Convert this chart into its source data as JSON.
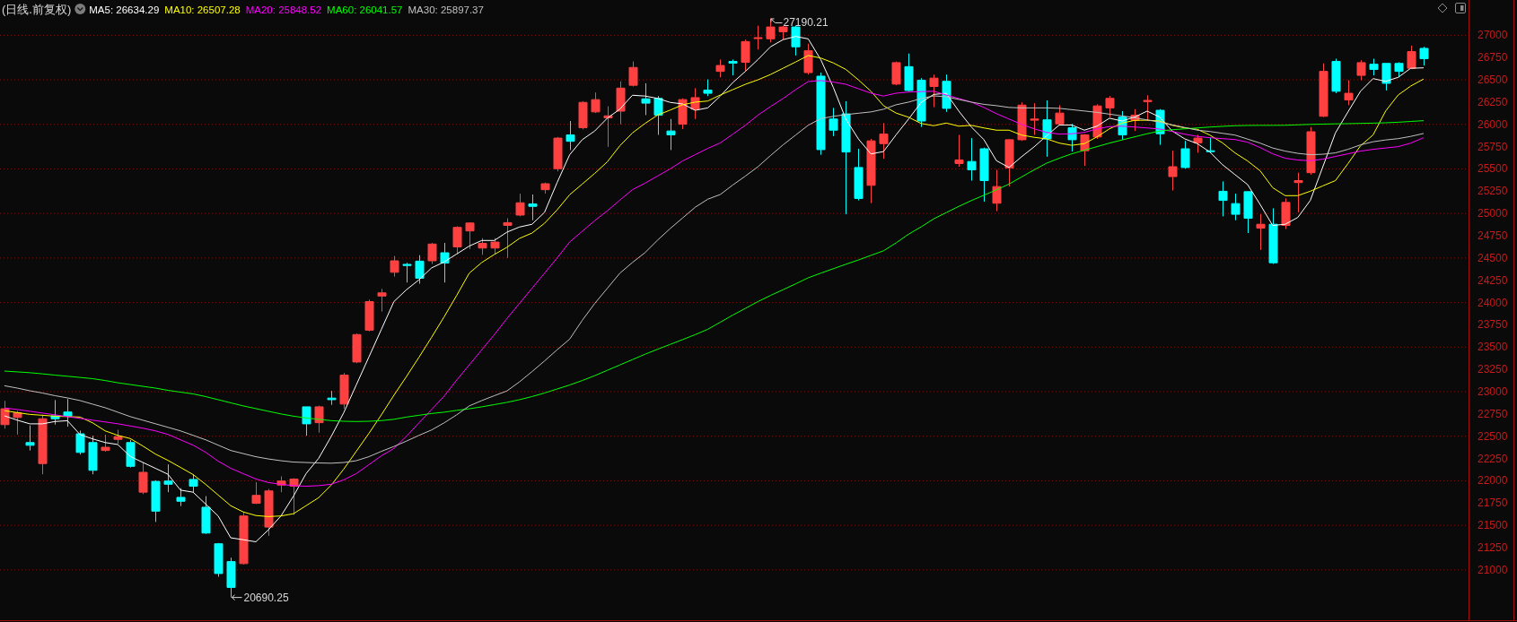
{
  "chart_data": {
    "type": "candlestick",
    "title": "(日线.前复权)",
    "categories": [
      null,
      null,
      null,
      null,
      null,
      null,
      null,
      null,
      null,
      null,
      null,
      null,
      null,
      null,
      null,
      null,
      null,
      null,
      null,
      null,
      null,
      null,
      null,
      null,
      null,
      null,
      null,
      null,
      null,
      null,
      null,
      null,
      null,
      null,
      null,
      null,
      null,
      null,
      null,
      null,
      null,
      null,
      null,
      null,
      null,
      null,
      null,
      null,
      null,
      null,
      null,
      null,
      null,
      null,
      null,
      null,
      null,
      null,
      null,
      null,
      null,
      null,
      null,
      null,
      null,
      null,
      null,
      null,
      null,
      null,
      null,
      null,
      null,
      null,
      null,
      null,
      null,
      null,
      null,
      null,
      null,
      null,
      null,
      null,
      null,
      null,
      null,
      null,
      null,
      null,
      null,
      null,
      null,
      null,
      null,
      null,
      null,
      null,
      null,
      null,
      null,
      null,
      null,
      null,
      null,
      null,
      null,
      null,
      null,
      null,
      null,
      null,
      null,
      null
    ],
    "ohlc": [
      [
        22630,
        22897,
        22585,
        22808
      ],
      [
        22710,
        22785,
        22518,
        22763
      ],
      [
        22429,
        22621,
        22340,
        22398
      ],
      [
        22193,
        22741,
        22073,
        22696
      ],
      [
        22728,
        22906,
        22630,
        22696
      ],
      [
        22772,
        22918,
        22607,
        22728
      ],
      [
        22527,
        22563,
        22295,
        22318
      ],
      [
        22429,
        22505,
        22073,
        22117
      ],
      [
        22340,
        22518,
        22327,
        22376
      ],
      [
        22465,
        22572,
        22416,
        22496
      ],
      [
        22429,
        22460,
        22149,
        22162
      ],
      [
        21872,
        22206,
        21850,
        22095
      ],
      [
        21993,
        22006,
        21538,
        21659
      ],
      [
        21997,
        22184,
        21872,
        21961
      ],
      [
        21814,
        21917,
        21716,
        21770
      ],
      [
        22015,
        22073,
        21872,
        21939
      ],
      [
        21703,
        21828,
        21404,
        21413
      ],
      [
        21293,
        21302,
        20923,
        20959
      ],
      [
        21093,
        21137,
        20690.25,
        20803
      ],
      [
        21070,
        21641,
        21060,
        21605
      ],
      [
        21747,
        21984,
        21739,
        21836
      ],
      [
        21480,
        21908,
        21382,
        21886
      ],
      [
        21952,
        22050,
        21872,
        21997
      ],
      [
        21939,
        22028,
        21618,
        22019
      ],
      [
        22830,
        22830,
        22505,
        22639
      ],
      [
        22652,
        22843,
        22541,
        22830
      ],
      [
        22928,
        23008,
        22852,
        22910
      ],
      [
        22861,
        23209,
        22808,
        23186
      ],
      [
        23333,
        23654,
        23320,
        23641
      ],
      [
        23690,
        24033,
        23677,
        24011
      ],
      [
        24073,
        24153,
        23899,
        24109
      ],
      [
        24340,
        24523,
        24291,
        24469
      ],
      [
        24429,
        24447,
        24225,
        24416
      ],
      [
        24465,
        24532,
        24211,
        24273
      ],
      [
        24469,
        24670,
        24434,
        24657
      ],
      [
        24559,
        24670,
        24225,
        24443
      ],
      [
        24625,
        24857,
        24545,
        24844
      ],
      [
        24804,
        24902,
        24601,
        24893
      ],
      [
        24612,
        24723,
        24536,
        24665
      ],
      [
        24612,
        24723,
        24545,
        24679
      ],
      [
        24866,
        24946,
        24501,
        24897
      ],
      [
        24982,
        25222,
        24968,
        25120
      ],
      [
        25107,
        25213,
        24924,
        25080
      ],
      [
        25267,
        25347,
        25222,
        25334
      ],
      [
        25503,
        25859,
        25472,
        25846
      ],
      [
        25882,
        26038,
        25712,
        25810
      ],
      [
        25962,
        26260,
        25944,
        26247
      ],
      [
        26140,
        26358,
        26127,
        26278
      ],
      [
        26073,
        26203,
        25748,
        26096
      ],
      [
        26149,
        26483,
        26002,
        26407
      ],
      [
        26439,
        26706,
        26425,
        26639
      ],
      [
        26287,
        26461,
        26104,
        26238
      ],
      [
        26292,
        26318,
        25882,
        26104
      ],
      [
        25926,
        26060,
        25712,
        25882
      ],
      [
        26002,
        26292,
        25948,
        26278
      ],
      [
        26171,
        26407,
        26060,
        26300
      ],
      [
        26385,
        26505,
        26318,
        26349
      ],
      [
        26595,
        26728,
        26528,
        26661
      ],
      [
        26706,
        26728,
        26550,
        26688
      ],
      [
        26697,
        26951,
        26595,
        26929
      ],
      [
        26964,
        27107,
        26840,
        26973
      ],
      [
        26960,
        27190.21,
        26920,
        27093
      ],
      [
        27040,
        27107,
        26951,
        27093
      ],
      [
        27093,
        27107,
        26773,
        26871
      ],
      [
        26581,
        26906,
        26559,
        26826
      ],
      [
        26541,
        26581,
        25659,
        25717
      ],
      [
        26060,
        26185,
        25868,
        25935
      ],
      [
        26118,
        26260,
        24991,
        25690
      ],
      [
        25516,
        25726,
        25147,
        25169
      ],
      [
        25316,
        25837,
        25115,
        25815
      ],
      [
        25784,
        26015,
        25614,
        25891
      ],
      [
        26452,
        26706,
        26439,
        26693
      ],
      [
        26648,
        26795,
        26372,
        26381
      ],
      [
        26496,
        26519,
        25971,
        26038
      ],
      [
        26425,
        26559,
        26194,
        26519
      ],
      [
        26483,
        26559,
        26140,
        26180
      ],
      [
        25561,
        25882,
        25525,
        25601
      ],
      [
        25583,
        25846,
        25369,
        25490
      ],
      [
        25726,
        25739,
        25133,
        25369
      ],
      [
        25115,
        25490,
        25026,
        25302
      ],
      [
        25512,
        25837,
        25302,
        25828
      ],
      [
        25828,
        26247,
        25815,
        26216
      ],
      [
        26047,
        26238,
        25882,
        26060
      ],
      [
        26051,
        26269,
        25637,
        25837
      ],
      [
        26006,
        26216,
        25993,
        26127
      ],
      [
        25962,
        26006,
        25695,
        25828
      ],
      [
        25704,
        25891,
        25534,
        25882
      ],
      [
        25859,
        26225,
        25837,
        26207
      ],
      [
        26185,
        26318,
        26082,
        26292
      ],
      [
        26082,
        26149,
        25828,
        25882
      ],
      [
        26047,
        26171,
        25926,
        26104
      ],
      [
        26256,
        26327,
        26038,
        26269
      ],
      [
        26158,
        26171,
        25770,
        25895
      ],
      [
        25414,
        25704,
        25258,
        25525
      ],
      [
        25726,
        25815,
        25503,
        25516
      ],
      [
        25793,
        25882,
        25681,
        25846
      ],
      [
        25704,
        25850,
        25681,
        25695
      ],
      [
        25249,
        25360,
        24968,
        25147
      ],
      [
        25111,
        25222,
        24924,
        24991
      ],
      [
        25245,
        25245,
        24781,
        24946
      ],
      [
        24835,
        24991,
        24590,
        24879
      ],
      [
        24879,
        25058,
        24434,
        24447
      ],
      [
        24866,
        25169,
        24826,
        25124
      ],
      [
        25347,
        25458,
        25013,
        25369
      ],
      [
        25458,
        25971,
        25436,
        25917
      ],
      [
        26091,
        26684,
        26082,
        26595
      ],
      [
        26706,
        26737,
        26350,
        26372
      ],
      [
        26274,
        26496,
        26216,
        26349
      ],
      [
        26550,
        26719,
        26496,
        26693
      ],
      [
        26675,
        26737,
        26550,
        26617
      ],
      [
        26684,
        26684,
        26381,
        26461
      ],
      [
        26684,
        26697,
        26528,
        26595
      ],
      [
        26630,
        26884,
        26630,
        26817
      ],
      [
        26853,
        26871,
        26661,
        26737
      ]
    ],
    "colors": [
      "#ff4040",
      "#ff4040",
      "#00ffff",
      "#ff4040",
      "#00ffff",
      "#00ffff",
      "#00ffff",
      "#00ffff",
      "#ff4040",
      "#ff4040",
      "#00ffff",
      "#ff4040",
      "#00ffff",
      "#00ffff",
      "#00ffff",
      "#00ffff",
      "#00ffff",
      "#00ffff",
      "#00ffff",
      "#ff4040",
      "#ff4040",
      "#ff4040",
      "#ff4040",
      "#ff4040",
      "#00ffff",
      "#ff4040",
      "#00ffff",
      "#ff4040",
      "#ff4040",
      "#ff4040",
      "#ff4040",
      "#ff4040",
      "#00ffff",
      "#00ffff",
      "#ff4040",
      "#00ffff",
      "#ff4040",
      "#ff4040",
      "#ff4040",
      "#ff4040",
      "#ff4040",
      "#ff4040",
      "#00ffff",
      "#ff4040",
      "#ff4040",
      "#00ffff",
      "#ff4040",
      "#ff4040",
      "#ff4040",
      "#ff4040",
      "#ff4040",
      "#00ffff",
      "#00ffff",
      "#00ffff",
      "#ff4040",
      "#ff4040",
      "#00ffff",
      "#ff4040",
      "#00ffff",
      "#ff4040",
      "#ff4040",
      "#ff4040",
      "#ff4040",
      "#00ffff",
      "#ff4040",
      "#00ffff",
      "#00ffff",
      "#00ffff",
      "#00ffff",
      "#ff4040",
      "#ff4040",
      "#ff4040",
      "#00ffff",
      "#00ffff",
      "#ff4040",
      "#00ffff",
      "#ff4040",
      "#00ffff",
      "#00ffff",
      "#ff4040",
      "#ff4040",
      "#ff4040",
      "#ff4040",
      "#00ffff",
      "#ff4040",
      "#00ffff",
      "#ff4040",
      "#ff4040",
      "#ff4040",
      "#00ffff",
      "#ff4040",
      "#ff4040",
      "#00ffff",
      "#ff4040",
      "#00ffff",
      "#ff4040",
      "#00ffff",
      "#00ffff",
      "#00ffff",
      "#00ffff",
      "#ff4040",
      "#00ffff",
      "#ff4040",
      "#ff4040",
      "#ff4040",
      "#ff4040",
      "#00ffff",
      "#ff4040",
      "#ff4040",
      "#00ffff",
      "#00ffff",
      "#00ffff",
      "#ff4040",
      "#00ffff"
    ],
    "series": [
      {
        "name": "MA5: 26634.29",
        "type": "line",
        "color": "#ffffff",
        "values": [
          22728,
          22680,
          22639,
          22639,
          22665,
          22674,
          22518,
          22470,
          22429,
          22407,
          22273,
          22206,
          22140,
          22073,
          21895,
          21872,
          21739,
          21605,
          21360,
          21338,
          21315,
          21449,
          21605,
          21828,
          22080,
          22251,
          22496,
          22763,
          23075,
          23387,
          23699,
          24011,
          24144,
          24256,
          24389,
          24456,
          24545,
          24634,
          24697,
          24697,
          24790,
          24848,
          24879,
          25013,
          25347,
          25659,
          25828,
          25926,
          26070,
          26171,
          26327,
          26318,
          26292,
          26247,
          26229,
          26158,
          26185,
          26318,
          26470,
          26595,
          26728,
          26871,
          26951,
          26987,
          26960,
          26728,
          26416,
          26060,
          25837,
          25668,
          25695,
          25882,
          26060,
          26247,
          26336,
          26349,
          26149,
          25971,
          25828,
          25592,
          25516,
          25637,
          25748,
          25873,
          25993,
          25993,
          25935,
          25980,
          26069,
          26038,
          26082,
          26149,
          26082,
          25926,
          25837,
          25784,
          25690,
          25548,
          25436,
          25325,
          25102,
          24866,
          24879,
          24955,
          25147,
          25525,
          25904,
          26140,
          26372,
          26514,
          26483,
          26528,
          26630,
          26634.29
        ]
      },
      {
        "name": "MA10: 26507.28",
        "type": "line",
        "color": "#ffff00",
        "values": [
          22786,
          22765,
          22745,
          22735,
          22725,
          22720,
          22715,
          22650,
          22560,
          22510,
          22474,
          22390,
          22300,
          22229,
          22150,
          22070,
          21960,
          21840,
          21720,
          21650,
          21610,
          21598,
          21605,
          21630,
          21720,
          21810,
          21950,
          22130,
          22330,
          22530,
          22740,
          22960,
          23170,
          23387,
          23610,
          23840,
          24080,
          24330,
          24450,
          24540,
          24620,
          24720,
          24780,
          24890,
          25040,
          25210,
          25330,
          25450,
          25580,
          25760,
          25904,
          26010,
          26104,
          26160,
          26220,
          26250,
          26262,
          26330,
          26390,
          26450,
          26500,
          26560,
          26630,
          26700,
          26773,
          26745,
          26690,
          26617,
          26500,
          26372,
          26210,
          26127,
          26080,
          26010,
          25985,
          26015,
          25980,
          25989,
          25960,
          25935,
          25935,
          25880,
          25855,
          25837,
          25790,
          25765,
          25784,
          25859,
          25950,
          26015,
          26045,
          26047,
          26038,
          25990,
          25960,
          25945,
          25880,
          25793,
          25680,
          25590,
          25480,
          25290,
          25200,
          25200,
          25250,
          25310,
          25369,
          25560,
          25760,
          25882,
          26150,
          26330,
          26430,
          26507.28
        ]
      },
      {
        "name": "MA20: 25848.52",
        "type": "line",
        "color": "#ff00ff",
        "values": [
          22817,
          22800,
          22780,
          22760,
          22740,
          22720,
          22700,
          22680,
          22660,
          22640,
          22615,
          22590,
          22560,
          22520,
          22460,
          22400,
          22320,
          22220,
          22140,
          22080,
          22020,
          21980,
          21960,
          21945,
          21939,
          21945,
          21961,
          22010,
          22080,
          22180,
          22280,
          22362,
          22500,
          22650,
          22800,
          22950,
          23130,
          23300,
          23470,
          23640,
          23820,
          23990,
          24160,
          24330,
          24500,
          24680,
          24800,
          24920,
          25030,
          25150,
          25267,
          25340,
          25420,
          25500,
          25590,
          25660,
          25730,
          25793,
          25890,
          25990,
          26104,
          26200,
          26290,
          26390,
          26480,
          26492,
          26475,
          26450,
          26400,
          26350,
          26318,
          26350,
          26363,
          26368,
          26372,
          26330,
          26290,
          26250,
          26190,
          26120,
          26060,
          26000,
          25950,
          25910,
          25891,
          25895,
          25910,
          25950,
          25975,
          25980,
          25970,
          25960,
          25948,
          25920,
          25890,
          25865,
          25850,
          25840,
          25830,
          25800,
          25740,
          25670,
          25620,
          25600,
          25592,
          25610,
          25640,
          25670,
          25700,
          25720,
          25735,
          25750,
          25790,
          25848.52
        ]
      },
      {
        "name": "MA60: 26041.57",
        "type": "line",
        "color": "#00ff00",
        "values": [
          23231,
          23222,
          23213,
          23200,
          23186,
          23173,
          23160,
          23146,
          23125,
          23100,
          23080,
          23060,
          23040,
          23015,
          22995,
          22975,
          22945,
          22910,
          22875,
          22840,
          22810,
          22780,
          22750,
          22725,
          22705,
          22690,
          22675,
          22668,
          22665,
          22668,
          22675,
          22690,
          22715,
          22735,
          22755,
          22770,
          22790,
          22808,
          22830,
          22855,
          22880,
          22910,
          22945,
          22985,
          23030,
          23075,
          23125,
          23180,
          23240,
          23300,
          23360,
          23420,
          23476,
          23530,
          23585,
          23640,
          23700,
          23780,
          23860,
          23935,
          24011,
          24080,
          24145,
          24210,
          24278,
          24330,
          24380,
          24430,
          24478,
          24530,
          24581,
          24670,
          24768,
          24850,
          24940,
          25010,
          25080,
          25145,
          25205,
          25265,
          25330,
          25410,
          25490,
          25565,
          25620,
          25670,
          25710,
          25750,
          25790,
          25825,
          25860,
          25895,
          25925,
          25940,
          25950,
          25960,
          25970,
          25978,
          25985,
          25988,
          25989,
          25989,
          25990,
          25995,
          26000,
          26003,
          26006,
          26008,
          26011,
          26014,
          26018,
          26024,
          26033,
          26041.57
        ]
      },
      {
        "name": "MA30: 25897.37",
        "type": "line",
        "color": "#c0c0c0",
        "values": [
          23066,
          23040,
          23010,
          22985,
          22955,
          22930,
          22900,
          22860,
          22820,
          22770,
          22720,
          22680,
          22640,
          22600,
          22560,
          22510,
          22460,
          22400,
          22340,
          22305,
          22270,
          22245,
          22225,
          22210,
          22205,
          22200,
          22197,
          22205,
          22225,
          22270,
          22330,
          22385,
          22445,
          22510,
          22570,
          22650,
          22740,
          22840,
          22900,
          22955,
          23008,
          23110,
          23225,
          23345,
          23470,
          23590,
          23800,
          23990,
          24160,
          24330,
          24450,
          24560,
          24700,
          24830,
          24950,
          25070,
          25160,
          25213,
          25320,
          25420,
          25525,
          25650,
          25770,
          25880,
          25990,
          26065,
          26090,
          26110,
          26125,
          26140,
          26170,
          26220,
          26250,
          26290,
          26320,
          26310,
          26280,
          26250,
          26225,
          26210,
          26190,
          26185,
          26185,
          26185,
          26180,
          26165,
          26150,
          26135,
          26115,
          26095,
          26075,
          26050,
          26025,
          25995,
          25965,
          25935,
          25920,
          25900,
          25880,
          25835,
          25790,
          25735,
          25700,
          25675,
          25660,
          25665,
          25680,
          25720,
          25770,
          25805,
          25825,
          25840,
          25865,
          25897.37
        ]
      }
    ],
    "ylim": [
      20435,
      27396
    ],
    "yticks": [
      21000,
      21250,
      21500,
      21750,
      22000,
      22250,
      22500,
      22750,
      23000,
      23250,
      23500,
      23750,
      24000,
      24250,
      24500,
      24750,
      25000,
      25250,
      25500,
      25750,
      26000,
      26250,
      26500,
      26750,
      27000
    ],
    "grid": "y",
    "legend": "top left",
    "tick_labels": "y",
    "annotations": [
      "27190.21",
      "20690.25"
    ]
  }
}
